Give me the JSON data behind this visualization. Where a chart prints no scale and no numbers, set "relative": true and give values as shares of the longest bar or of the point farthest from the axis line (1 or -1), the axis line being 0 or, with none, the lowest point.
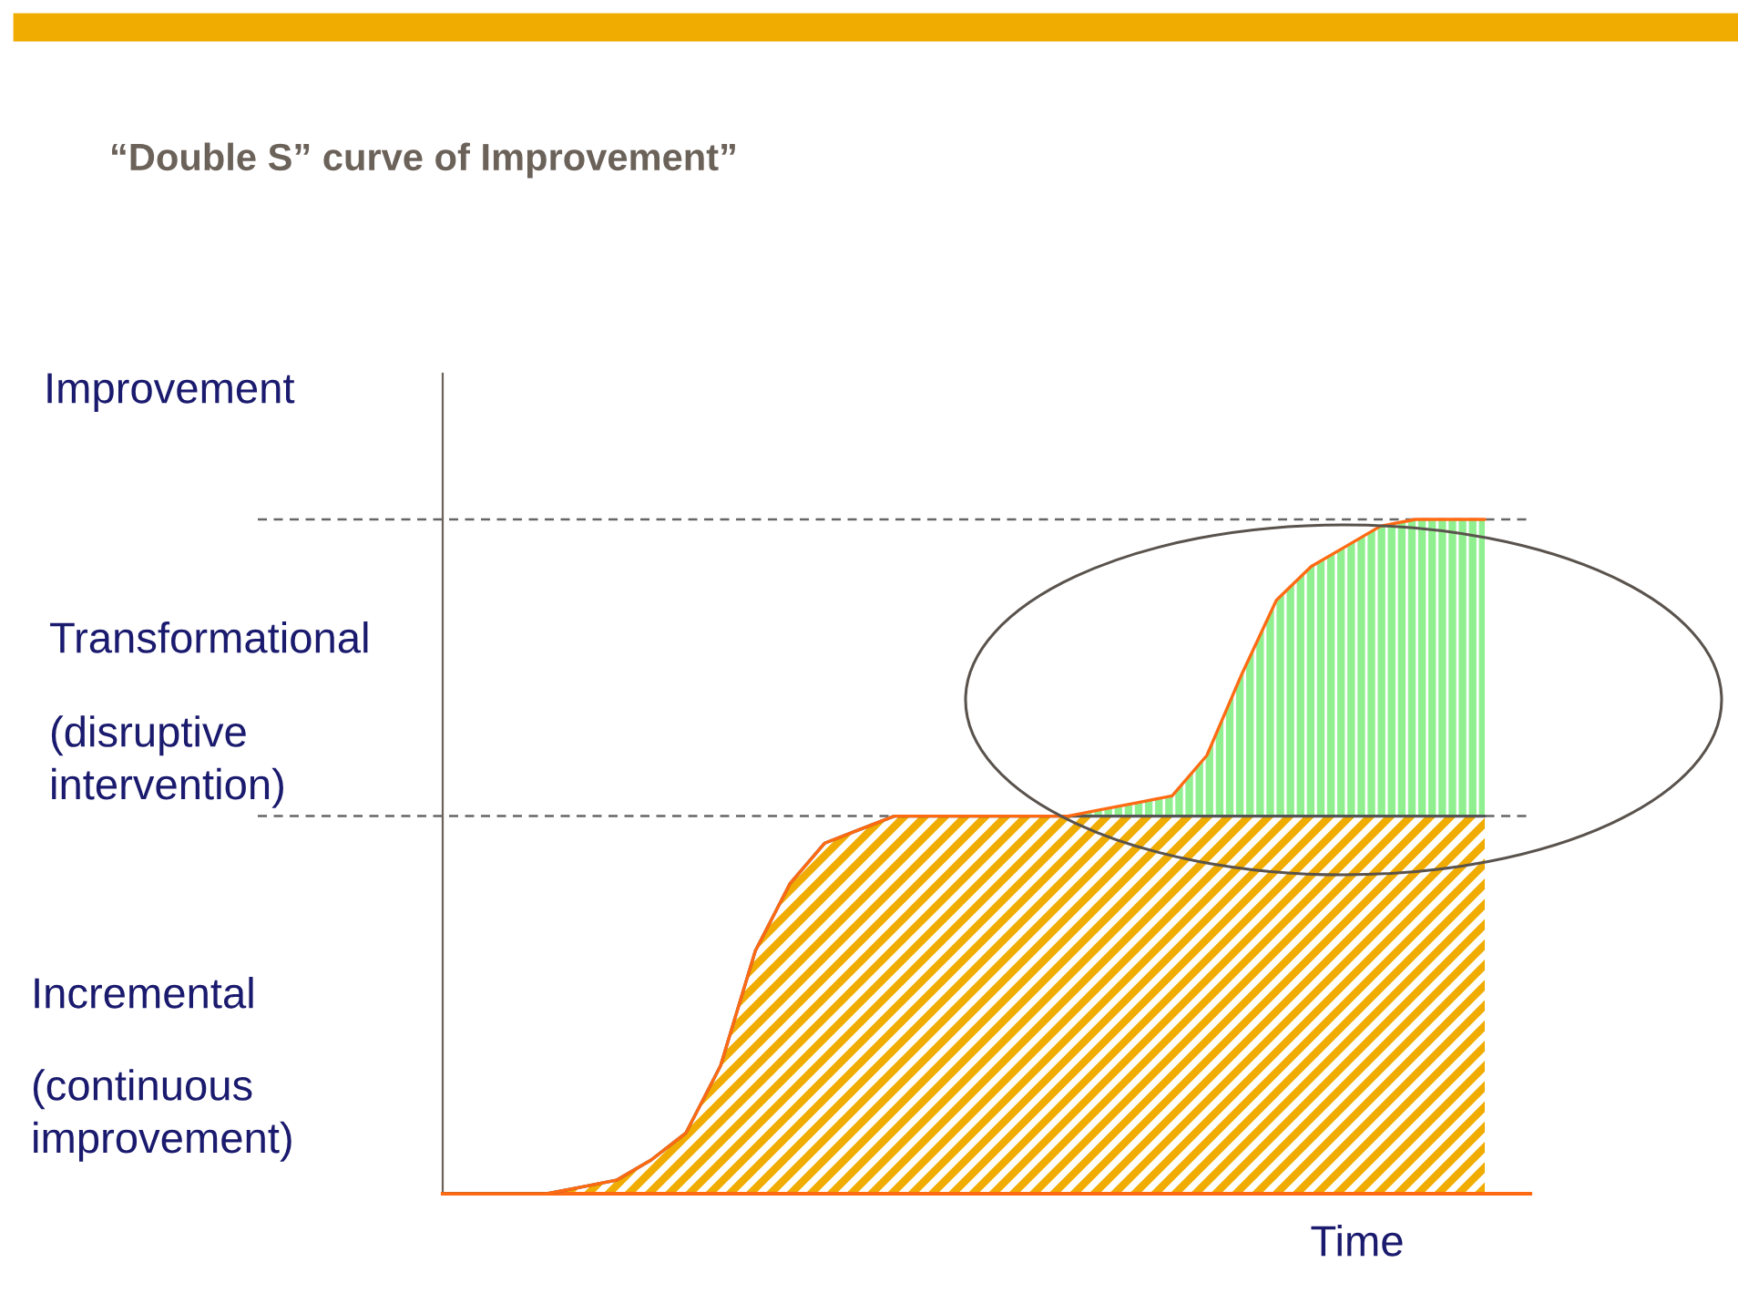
{
  "chart_data": {
    "type": "area",
    "stacked": true,
    "relative": true,
    "title": "“Double S” curve of Improvement”",
    "xlabel": "Time",
    "ylabel": "Improvement",
    "categories": [
      null,
      null,
      null,
      null,
      null,
      null,
      null,
      null,
      null,
      null,
      null,
      null,
      null,
      null,
      null,
      null,
      null,
      null,
      null,
      null,
      null,
      null,
      null,
      null,
      null,
      null,
      null,
      null,
      null,
      null,
      null
    ],
    "series": [
      {
        "color": "#f0ac00",
        "values": [
          0,
          0,
          0,
          0,
          0.01,
          0.02,
          0.05,
          0.09,
          0.19,
          0.36,
          0.46,
          0.52,
          0.54,
          0.56,
          0.56,
          0.56,
          0.56,
          0.56,
          0.56,
          0.56,
          0.56,
          0.56,
          0.56,
          0.56,
          0.56,
          0.56,
          0.56,
          0.56,
          0.56,
          0.56,
          0.56
        ]
      },
      {
        "color": "#90f090",
        "values": [
          0,
          0,
          0,
          0,
          0,
          0,
          0,
          0,
          0,
          0,
          0,
          0,
          0,
          0,
          0,
          0,
          0,
          0,
          0,
          0.01,
          0.02,
          0.03,
          0.09,
          0.21,
          0.32,
          0.37,
          0.4,
          0.43,
          0.44,
          0.44,
          0.44
        ]
      }
    ],
    "ref_lines": [
      {
        "axis": "y",
        "value": 0.56,
        "color": "#666666",
        "line_style": "dashed"
      },
      {
        "axis": "y",
        "value": 1,
        "color": "#666666",
        "line_style": "dashed"
      }
    ],
    "annotations": [
      "Transformational",
      "(disruptive\nintervention)",
      "Incremental",
      "(continuous\nimprovement)"
    ]
  }
}
